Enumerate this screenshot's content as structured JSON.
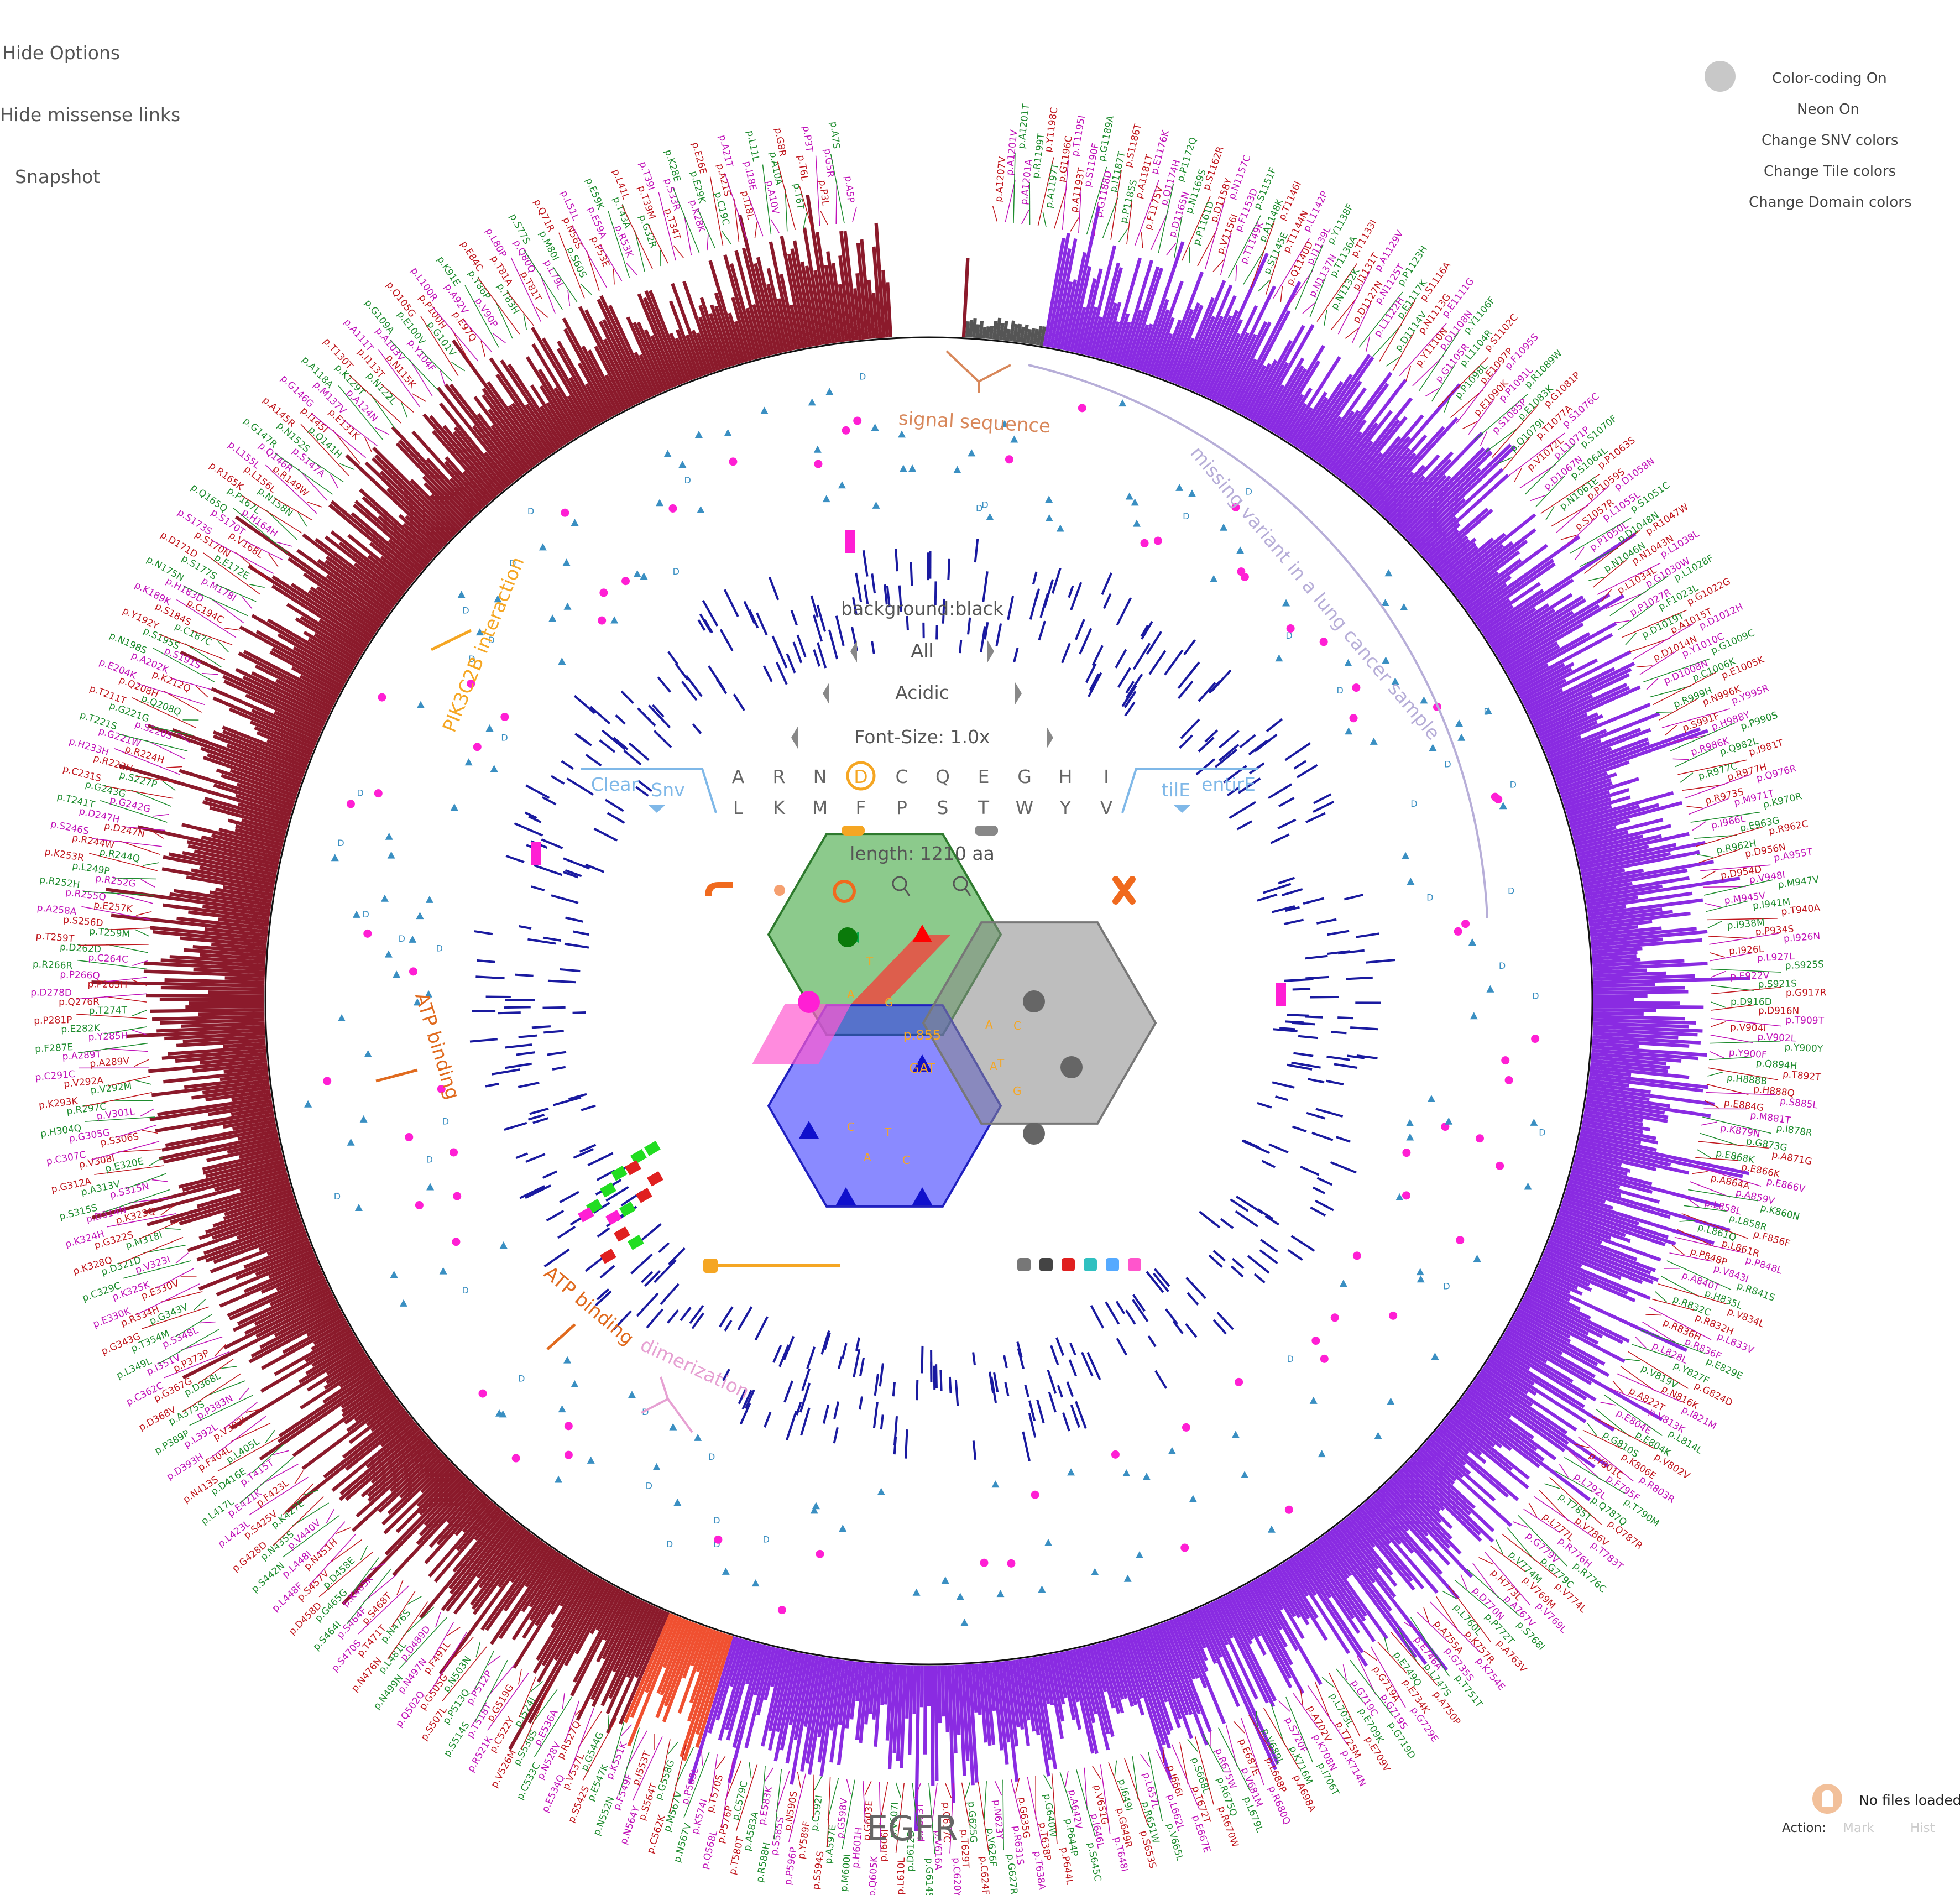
{
  "options": {
    "hide_options": "Hide Options",
    "hide_missense": "Hide missense links",
    "snapshot": "Snapshot"
  },
  "settings": {
    "color_coding": "Color-coding On",
    "neon": "Neon On",
    "snv_colors": "Change SNV colors",
    "tile_colors": "Change Tile colors",
    "domain_colors": "Change Domain colors"
  },
  "center": {
    "background": "background:black",
    "filter1": "All",
    "filter2": "Acidic",
    "font_size": "Font-Size: 1.0x",
    "clear": "Clear",
    "snv": "Snv",
    "tile": "tilE",
    "entire": "entirE",
    "amino_row1": [
      "A",
      "R",
      "N",
      "D",
      "C",
      "Q",
      "E",
      "G",
      "H",
      "I"
    ],
    "amino_row2": [
      "L",
      "K",
      "M",
      "F",
      "P",
      "S",
      "T",
      "W",
      "Y",
      "V"
    ],
    "length": "length: 1210 aa",
    "position": "p.855",
    "codon": "GAT",
    "hex_letters": [
      "T",
      "A",
      "G",
      "C",
      "A",
      "T",
      "G",
      "C",
      "T",
      "A",
      "C",
      "A"
    ]
  },
  "domains": [
    {
      "label": "signal sequence",
      "color": "#d8875a"
    },
    {
      "label": "missing variant in a lung cancer sample",
      "color": "#b7aed8"
    },
    {
      "label": "PIK3C2B interaction",
      "color": "#f5a623"
    },
    {
      "label": "ATP binding",
      "color": "#e06a1e"
    },
    {
      "label": "ATP binding",
      "color": "#e06a1e"
    },
    {
      "label": "dimerization",
      "color": "#e6a0d2"
    }
  ],
  "gene": "EGFR",
  "files": {
    "status": "No files loaded",
    "action_label": "Action:",
    "mark": "Mark",
    "hist": "Hist"
  },
  "colors": {
    "region_a": "#8b1a2b",
    "region_b": "#8a2be2",
    "region_c": "#f05030",
    "region_grey": "#555555",
    "inner_ticks": "#1a1aa0",
    "label_red": "#c0161d",
    "label_magenta": "#c013b8",
    "label_green": "#1e8c2e",
    "accent_blue": "#7fb8e8",
    "accent_orange": "#f5a623",
    "accent_magenta": "#ff1fd4"
  },
  "variants": [
    "p.A1207V",
    "p.A1201V",
    "p.A1201T",
    "p.A1201A",
    "p.R1199T",
    "p.Y1198C",
    "p.A1197T",
    "p.G1196C",
    "p.T1195I",
    "p.A1193T",
    "p.S1190F",
    "p.G1189A",
    "p.G1188D",
    "p.I1187T",
    "p.S1186T",
    "p.P1185S",
    "p.A1181T",
    "p.E1176K",
    "p.F1175V",
    "p.Q1174H",
    "p.P1172Q",
    "p.D1165N",
    "p.N1169S",
    "p.S1162R",
    "p.P1161D",
    "p.D1158Y",
    "p.N1157C",
    "p.V1156I",
    "p.F1153D",
    "p.S1151F",
    "p.T1149K",
    "p.A1148K",
    "p.T1146I",
    "p.S1145E",
    "p.T1144N",
    "p.L1142P",
    "p.Q1140D",
    "p.I1139L",
    "p.Y1138F",
    "p.N1137N",
    "p.T1136A",
    "p.T1133I",
    "p.N1132K",
    "p.I1131T",
    "p.A1129V",
    "p.D1127N",
    "p.N1125T",
    "p.P1123H",
    "p.L1122H",
    "p.E1117K",
    "p.S1116A",
    "p.D1114V",
    "p.N1113G",
    "p.E1111G",
    "p.Y1110N",
    "p.D1108N",
    "p.Y1106F",
    "p.G1105R",
    "p.L1104R",
    "p.S1102C",
    "p.P1098L",
    "p.E1097P",
    "p.F1095S",
    "p.E1090K",
    "p.P1091L",
    "p.R1089W",
    "p.S1085P",
    "p.E1083K",
    "p.G1081P",
    "p.Q1079I",
    "p.T1077A",
    "p.S1076C",
    "p.V1072L",
    "p.L1071P",
    "p.S1070F",
    "p.D1067N",
    "p.S1064L",
    "p.P1063S",
    "p.N1061E",
    "p.P1059S",
    "p.D1058N",
    "p.S1057R",
    "p.L1055L",
    "p.S1051C",
    "p.P1050L",
    "p.D1048N",
    "p.R1047W",
    "p.N1046N",
    "p.N1043N",
    "p.L1038L",
    "p.L1034L",
    "p.G1030W",
    "p.L1028F",
    "p.P1027R",
    "p.F1023L",
    "p.G1022G",
    "p.D1019Y",
    "p.A1015T",
    "p.D1012H",
    "p.D1014N",
    "p.Y1010C",
    "p.G1009C",
    "p.D1008N",
    "p.C1006K",
    "p.E1005K",
    "p.R999H",
    "p.N996K",
    "p.Y995R",
    "p.S991F",
    "p.H988Y",
    "p.P990S",
    "p.R986K",
    "p.Q982L",
    "p.I981T",
    "p.R977C",
    "p.R977H",
    "p.Q976R",
    "p.R973S",
    "p.M971T",
    "p.K970R",
    "p.I966L",
    "p.E963G",
    "p.R962C",
    "p.R962H",
    "p.D956N",
    "p.A955T",
    "p.D954D",
    "p.V948I",
    "p.M947V",
    "p.M945V",
    "p.I941M",
    "p.T940A",
    "p.I938M",
    "p.P934S",
    "p.I926N",
    "p.I926L",
    "p.L927L",
    "p.S925S",
    "p.E922V",
    "p.S921S",
    "p.G917R",
    "p.D916D",
    "p.D916N",
    "p.T909T",
    "p.V904I",
    "p.V902L",
    "p.Y900Y",
    "p.Y900F",
    "p.Q894H",
    "p.T892T",
    "p.H888B",
    "p.H888Q",
    "p.S885L",
    "p.E884G",
    "p.M881T",
    "p.I878R",
    "p.K879N",
    "p.G873G",
    "p.A871G",
    "p.E868K",
    "p.E866K",
    "p.E866V",
    "p.A864A",
    "p.A859V",
    "p.K860N",
    "p.L858L",
    "p.L858R",
    "p.F856F",
    "p.L861Q",
    "p.L861R",
    "p.P848L",
    "p.P848P",
    "p.V843I",
    "p.R841S",
    "p.A840T",
    "p.H835L",
    "p.V834L",
    "p.R832C",
    "p.R832H",
    "p.L833V",
    "p.R836H",
    "p.R836F",
    "p.E829E",
    "p.L828L",
    "p.Y827F",
    "p.G824D",
    "p.V819V",
    "p.N816K",
    "p.I821M",
    "p.A822T",
    "p.V813K",
    "p.L814L",
    "p.E804E",
    "p.E804K",
    "p.V802V",
    "p.G810S",
    "p.K806E",
    "p.R803R",
    "p.Y801C",
    "p.F795F",
    "p.T790M",
    "p.L792L",
    "p.Q787Q",
    "p.Q787R",
    "p.T785T",
    "p.V786V",
    "p.T783T",
    "p.L777L",
    "p.R776H",
    "p.R776C",
    "p.G779V",
    "p.G779C",
    "p.V774L",
    "p.V774M",
    "p.V769M",
    "p.V769L",
    "p.H773L",
    "p.A767V",
    "p.S768I",
    "p.D770N",
    "p.P772T",
    "p.A763V",
    "p.L760L",
    "p.K757R",
    "p.K754E",
    "p.A755A",
    "p.G735S",
    "p.T751T",
    "p.E746A",
    "p.L747S",
    "p.A750P",
    "p.E749Q",
    "p.E734K",
    "p.G729E",
    "p.G719A",
    "p.G719S",
    "p.G719D",
    "p.G719C",
    "p.E709K",
    "p.E709V",
    "p.L703L",
    "p.T725M",
    "p.K714N",
    "p.A702V",
    "p.K708N",
    "p.I706T",
    "p.S720F",
    "p.K716M",
    "p.A698A",
    "p.V689L",
    "p.L688P",
    "p.R680Q",
    "p.E687E",
    "p.V681M",
    "p.L679L",
    "p.R675W",
    "p.R675Q",
    "p.R670W",
    "p.S668L",
    "p.T672T",
    "p.E667E",
    "p.I666I",
    "p.L662L",
    "p.V665L",
    "p.L657L",
    "p.R651W",
    "p.S653S",
    "p.I649I",
    "p.G649R",
    "p.T648I",
    "p.V651G",
    "p.I646L",
    "p.S645C",
    "p.A642V",
    "p.P644P",
    "p.P644L",
    "p.G640W",
    "p.T638P",
    "p.T638A",
    "p.G635G",
    "p.R631S",
    "p.G627R",
    "p.N623Y",
    "p.V626F",
    "p.C624F",
    "p.G625G",
    "p.T629T",
    "p.C620Y",
    "p.C617C",
    "p.V616A",
    "p.G614S",
    "p.A613T",
    "p.D612D",
    "p.L610L",
    "p.V607I",
    "p.I606I",
    "p.Q605K",
    "p.G603E",
    "p.H601H",
    "p.M600I",
    "p.G598V",
    "p.A597E",
    "p.S594S",
    "p.C592I",
    "p.Y589F",
    "p.P596P",
    "p.N590S",
    "p.S585S",
    "p.R588H",
    "p.E583K",
    "p.A583A",
    "p.T580T",
    "p.C579C",
    "p.P576P",
    "p.Q568L",
    "p.T570S",
    "p.K574I",
    "p.N567V",
    "p.P565L",
    "p.M567V",
    "p.C562K",
    "p.G558G",
    "p.S564T",
    "p.N564Y",
    "p.I553T",
    "p.F549F",
    "p.N552N",
    "p.K551K",
    "p.E547K",
    "p.S542S",
    "p.G544G",
    "p.V537L",
    "p.E534Q",
    "p.R527Q",
    "p.N528V",
    "p.C533C",
    "p.E536A",
    "p.S538S",
    "p.V526M",
    "p.I524I",
    "p.C522Y",
    "p.R521K",
    "p.G519G",
    "p.T518T",
    "p.S514S",
    "p.P512P",
    "p.P513Q",
    "p.S507L",
    "p.N503N",
    "p.G505G",
    "p.Q502Q",
    "p.F491L",
    "p.N497N",
    "p.N499N",
    "p.D489D",
    "p.L481L",
    "p.N476N",
    "p.N476S",
    "p.T471T",
    "p.S470S",
    "p.S468T",
    "p.S464F",
    "p.S464I",
    "p.K465K",
    "p.G465G",
    "p.D458D",
    "p.D458E",
    "p.S457V",
    "p.L448F",
    "p.N451H",
    "p.L448I",
    "p.S442N",
    "p.V440V",
    "p.N435S",
    "p.G428D",
    "p.K427E",
    "p.S425V",
    "p.L423L",
    "p.F423L",
    "p.E421K",
    "p.L417L",
    "p.T415T",
    "p.D416E",
    "p.N413S",
    "p.L405L",
    "p.F404L",
    "p.D393H",
    "p.V393I",
    "p.L392L",
    "p.P389P",
    "p.P383N",
    "p.A375S",
    "p.D368V",
    "p.D368L",
    "p.G367G",
    "p.C362C",
    "p.P373P",
    "p.I351V",
    "p.L349L",
    "p.S348L",
    "p.T354M",
    "p.G343G",
    "p.G343V",
    "p.R334H",
    "p.E330K",
    "p.E330V",
    "p.K325K",
    "p.C329C",
    "p.V323I",
    "p.D321D",
    "p.K328Q",
    "p.M318I",
    "p.G322S",
    "p.K324H",
    "p.K325Q",
    "p.D314N",
    "p.S315S",
    "p.S315N",
    "p.A313V",
    "p.G312A",
    "p.E320E",
    "p.V308I",
    "p.C307C",
    "p.S306S",
    "p.G305G",
    "p.H304Q",
    "p.V301L",
    "p.R297C",
    "p.K293K",
    "p.V292M",
    "p.V292A",
    "p.C291C",
    "p.A289V",
    "p.A289T",
    "p.F287E",
    "p.Y285H",
    "p.E282K",
    "p.P281P",
    "p.T274T",
    "p.Q276R",
    "p.D278D",
    "p.P265H",
    "p.P266Q",
    "p.R266R",
    "p.C264C",
    "p.D262D",
    "p.T259T",
    "p.T259M",
    "p.S256D",
    "p.A258A",
    "p.E257K",
    "p.R255Q",
    "p.R252H",
    "p.R252G",
    "p.L249P",
    "p.K253R",
    "p.R244Q",
    "p.R244W",
    "p.S246S",
    "p.D247N",
    "p.D247H",
    "p.T241T",
    "p.G242G",
    "p.G243G",
    "p.C231S",
    "p.S227P",
    "p.R222H",
    "p.H233H",
    "p.R224H",
    "p.G221W",
    "p.T221S",
    "p.S220S",
    "p.G221G",
    "p.T211T",
    "p.Q208Q",
    "p.Q208H",
    "p.E204K",
    "p.K212Q",
    "p.A202K",
    "p.N198S",
    "p.S191S",
    "p.S195S",
    "p.Y192Y",
    "p.C187C",
    "p.S184S",
    "p.K189K",
    "p.C194C",
    "p.H183D",
    "p.N175N",
    "p.M178I",
    "p.S177S",
    "p.D171D",
    "p.E172E",
    "p.S170N",
    "p.S173S",
    "p.V168L",
    "p.S170T",
    "p.Q165Q",
    "p.H164H",
    "p.P167L",
    "p.R165K",
    "p.N158N",
    "p.L156L",
    "p.L155L",
    "p.R149W",
    "p.Q146R",
    "p.G147R",
    "p.S147A",
    "p.N152S",
    "p.A145R",
    "p.Q141H",
    "p.I145I",
    "p.G146G",
    "p.E131K",
    "p.M137V",
    "p.A118A",
    "p.A124N",
    "p.K129T",
    "p.T130T",
    "p.N122L",
    "p.I113T",
    "p.A111T",
    "p.N115K",
    "p.A103V",
    "p.G109A",
    "p.Y104F",
    "p.E100V",
    "p.Q105G",
    "p.G101V",
    "p.P100H",
    "p.L100R",
    "p.E97Q",
    "p.A92V",
    "p.K91E",
    "p.V90P",
    "p.Y86P",
    "p.E84C",
    "p.T83H",
    "p.T81A",
    "p.L80P",
    "p.T81T",
    "p.Q80Q",
    "p.S77S",
    "p.L79L",
    "p.M80I",
    "p.Q71R",
    "p.S60S",
    "p.N56S",
    "p.L51L",
    "p.P53E",
    "p.E59A",
    "p.E59K",
    "p.R53K",
    "p.T43A",
    "p.L41L",
    "p.G32R",
    "p.T39M",
    "p.T39I",
    "p.T34T",
    "p.S33R",
    "p.K28E",
    "p.K28K",
    "p.E29K",
    "p.E26E",
    "p.C19C",
    "p.A21S",
    "p.A21T",
    "p.I18L",
    "p.I18E",
    "p.L11L",
    "p.A10V",
    "p.A10A",
    "p.G8R",
    "p.T6T",
    "p.T6L",
    "p.P3T",
    "p.P3L",
    "p.G5R",
    "p.A7S",
    "p.A5P"
  ]
}
